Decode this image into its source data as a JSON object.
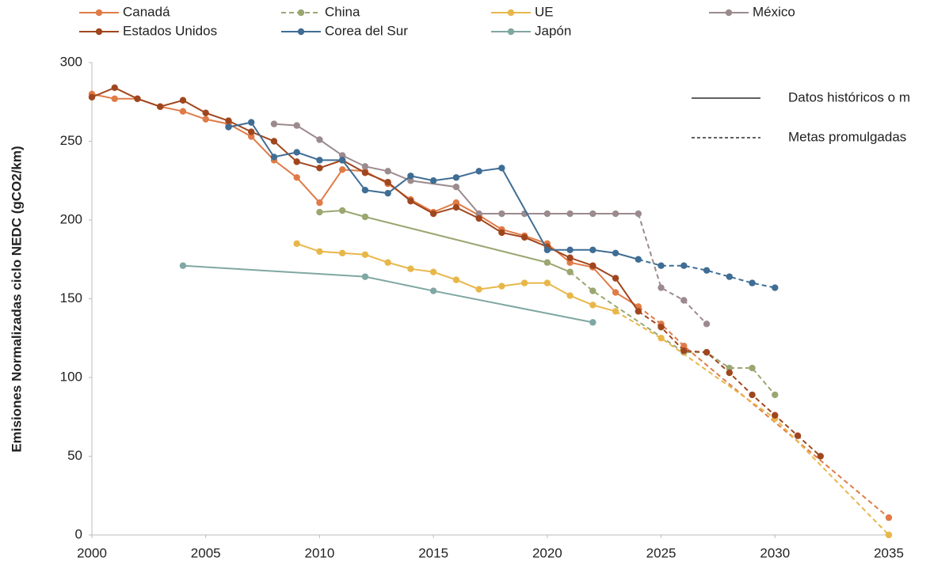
{
  "chart_data": {
    "type": "line",
    "y_label": "Emisiones Normalizadas ciclo NEDC (gCO2/km)",
    "xlim": [
      2000,
      2035
    ],
    "xticks": [
      2000,
      2005,
      2010,
      2015,
      2020,
      2025,
      2030,
      2035
    ],
    "ylim": [
      0,
      300
    ],
    "yticks": [
      0,
      50,
      100,
      150,
      200,
      250,
      300
    ],
    "grid": false,
    "style_legend": {
      "solid": "Datos históricos o m",
      "dashed": "Metas promulgadas"
    },
    "series": [
      {
        "name": "Canadá",
        "color": "#e07b47",
        "dashed_from": 2024,
        "x": [
          2000,
          2001,
          2002,
          2003,
          2004,
          2005,
          2006,
          2007,
          2008,
          2009,
          2010,
          2011,
          2012,
          2013,
          2014,
          2015,
          2016,
          2017,
          2018,
          2019,
          2020,
          2021,
          2022,
          2023,
          2024,
          2025,
          2026,
          2035
        ],
        "values": [
          280,
          277,
          277,
          272,
          269,
          264,
          261,
          253,
          238,
          227,
          211,
          232,
          231,
          223,
          213,
          205,
          211,
          203,
          194,
          190,
          185,
          173,
          170,
          154,
          145,
          134,
          120,
          11
        ]
      },
      {
        "name": "China",
        "color": "#9aa771",
        "dashed_from": 2021,
        "x": [
          2010,
          2011,
          2012,
          2020,
          2021,
          2022,
          2026,
          2027,
          2028,
          2029,
          2030
        ],
        "values": [
          205,
          206,
          202,
          173,
          167,
          155,
          116,
          116,
          106,
          106,
          89
        ]
      },
      {
        "name": "UE",
        "color": "#e8b74a",
        "dashed_from": 2023,
        "x": [
          2009,
          2010,
          2011,
          2012,
          2013,
          2014,
          2015,
          2016,
          2017,
          2018,
          2019,
          2020,
          2021,
          2022,
          2023,
          2025,
          2030,
          2035
        ],
        "values": [
          185,
          180,
          179,
          178,
          173,
          169,
          167,
          162,
          156,
          158,
          160,
          160,
          152,
          146,
          142,
          125,
          74,
          0
        ]
      },
      {
        "name": "México",
        "color": "#9b8b8e",
        "dashed_from": 2024,
        "x": [
          2008,
          2009,
          2010,
          2011,
          2012,
          2013,
          2014,
          2016,
          2017,
          2018,
          2019,
          2020,
          2021,
          2022,
          2023,
          2024,
          2025,
          2026,
          2027
        ],
        "values": [
          261,
          260,
          251,
          241,
          234,
          231,
          225,
          221,
          204,
          204,
          204,
          204,
          204,
          204,
          204,
          204,
          157,
          149,
          134
        ]
      },
      {
        "name": "Estados Unidos",
        "color": "#a0461e",
        "dashed_from": 2024,
        "x": [
          2000,
          2001,
          2002,
          2003,
          2004,
          2005,
          2006,
          2007,
          2008,
          2009,
          2010,
          2011,
          2012,
          2013,
          2014,
          2015,
          2016,
          2017,
          2018,
          2019,
          2020,
          2021,
          2022,
          2023,
          2024,
          2025,
          2026,
          2027,
          2028,
          2029,
          2030,
          2031,
          2032
        ],
        "values": [
          278,
          284,
          277,
          272,
          276,
          268,
          263,
          256,
          250,
          237,
          233,
          238,
          230,
          224,
          212,
          204,
          208,
          201,
          192,
          189,
          183,
          176,
          171,
          163,
          142,
          132,
          117,
          116,
          103,
          89,
          76,
          63,
          50
        ]
      },
      {
        "name": "Corea del Sur",
        "color": "#3f6d94",
        "dashed_from": 2024,
        "x": [
          2006,
          2007,
          2008,
          2009,
          2010,
          2011,
          2012,
          2013,
          2014,
          2015,
          2016,
          2017,
          2018,
          2020,
          2021,
          2022,
          2023,
          2024,
          2025,
          2026,
          2027,
          2028,
          2029,
          2030
        ],
        "values": [
          259,
          262,
          240,
          243,
          238,
          238,
          219,
          217,
          228,
          225,
          227,
          231,
          233,
          181,
          181,
          181,
          179,
          175,
          171,
          171,
          168,
          164,
          160,
          157
        ]
      },
      {
        "name": "Japón",
        "color": "#7fa7a3",
        "dashed_from": 2035,
        "x": [
          2004,
          2012,
          2015,
          2022
        ],
        "values": [
          171,
          164,
          155,
          135
        ]
      }
    ]
  }
}
